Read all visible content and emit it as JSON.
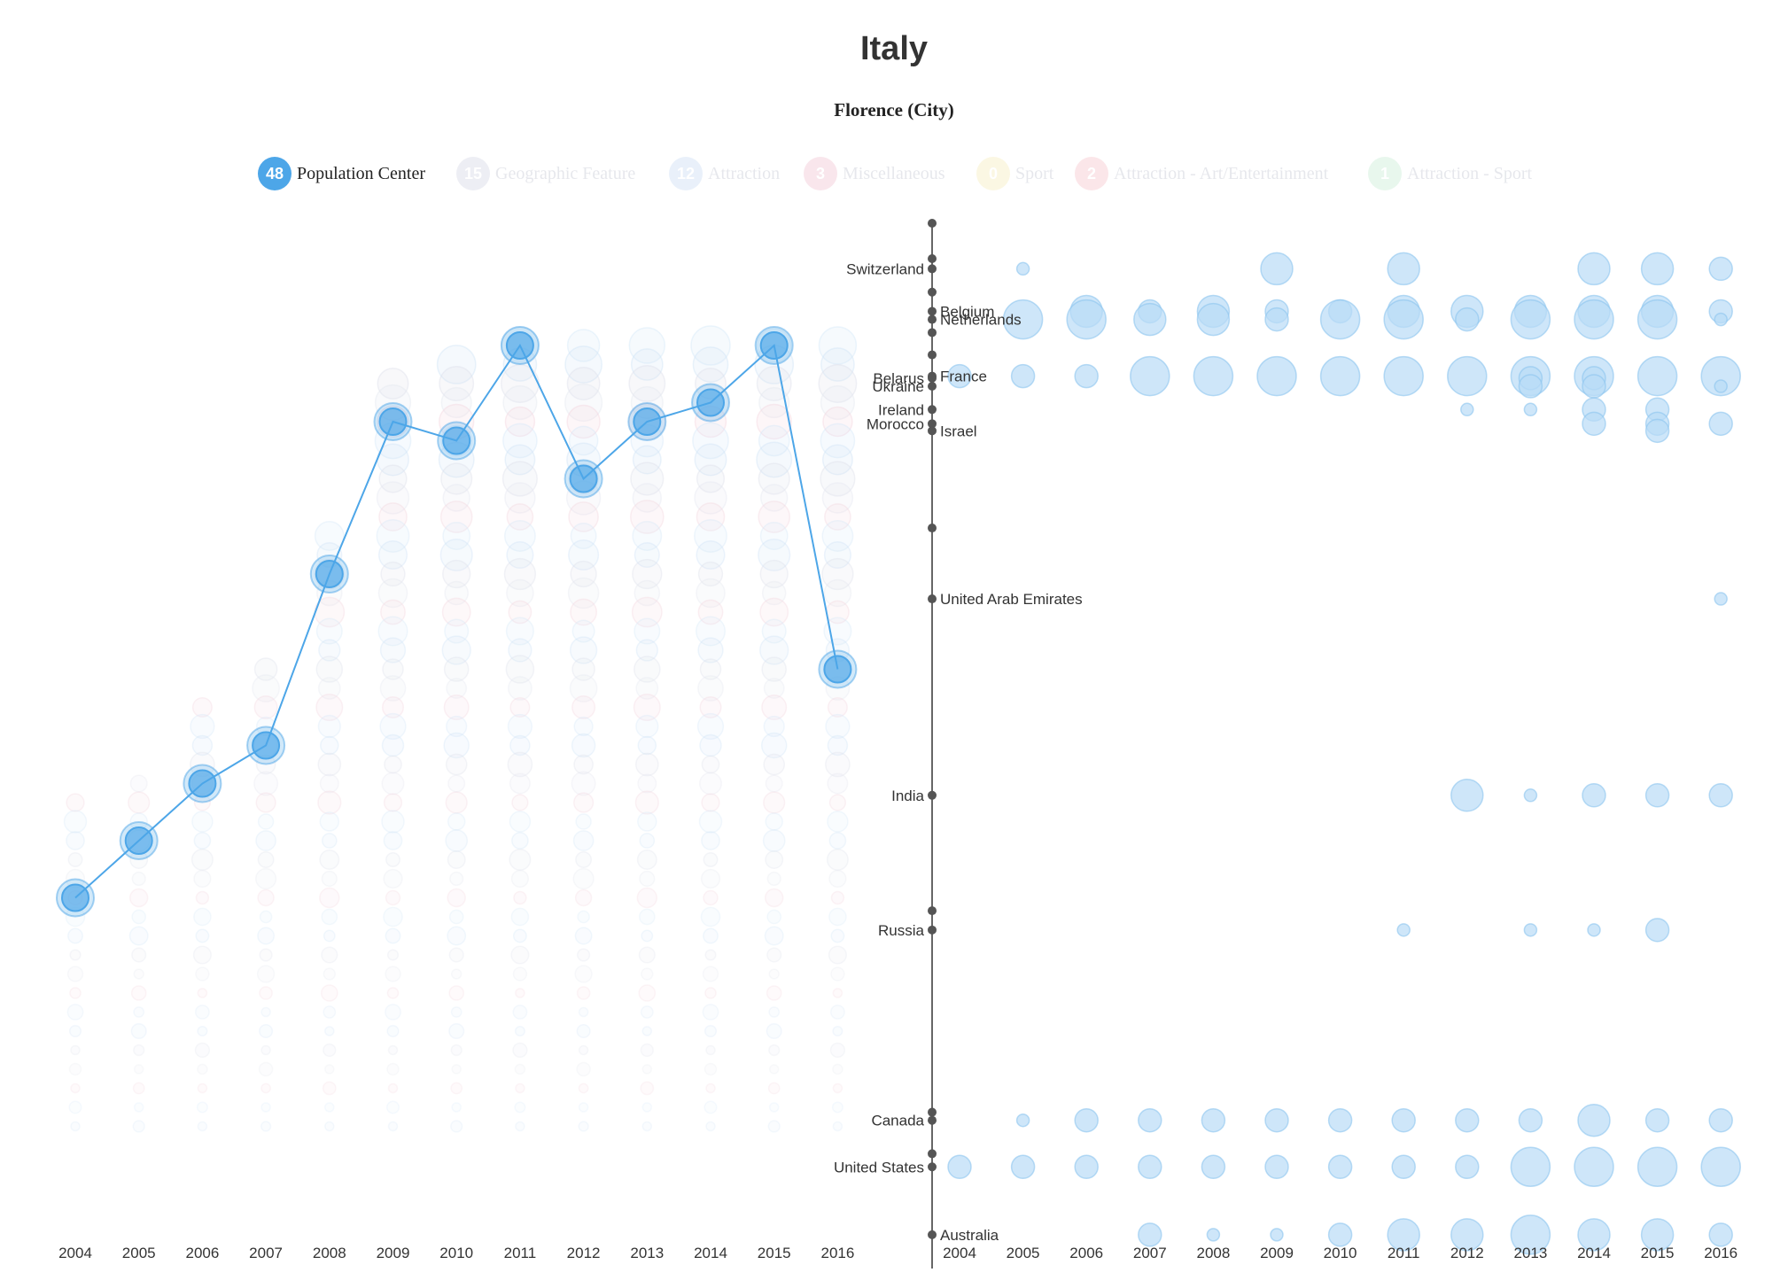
{
  "page": {
    "title": "Italy",
    "subtitle": "Florence (City)"
  },
  "legend": [
    {
      "count": "48",
      "label": "Population Center",
      "color": "#4da6e8",
      "active": true
    },
    {
      "count": "15",
      "label": "Geographic Feature",
      "color": "#d9dbe8",
      "active": false
    },
    {
      "count": "12",
      "label": "Attraction",
      "color": "#cfe0f5",
      "active": false
    },
    {
      "count": "3",
      "label": "Miscellaneous",
      "color": "#f2c9d6",
      "active": false
    },
    {
      "count": "0",
      "label": "Sport",
      "color": "#f7efc2",
      "active": false
    },
    {
      "count": "2",
      "label": "Attraction - Art/Entertainment",
      "color": "#f7c9cf",
      "active": false
    },
    {
      "count": "1",
      "label": "Attraction - Sport",
      "color": "#cdeed8",
      "active": false
    }
  ],
  "chart_data": [
    {
      "type": "line",
      "years": [
        "2004",
        "2005",
        "2006",
        "2007",
        "2008",
        "2009",
        "2010",
        "2011",
        "2012",
        "2013",
        "2014",
        "2015",
        "2016"
      ],
      "series": [
        {
          "name": "Population Center",
          "rank": [
            29,
            26,
            23,
            21,
            12,
            4,
            5,
            0,
            7,
            4,
            3,
            0,
            17
          ]
        }
      ],
      "accent": "#4da6e8"
    },
    {
      "type": "scatter",
      "years": [
        "2004",
        "2005",
        "2006",
        "2007",
        "2008",
        "2009",
        "2010",
        "2011",
        "2012",
        "2013",
        "2014",
        "2015",
        "2016"
      ],
      "countries": [
        {
          "name": "Switzerland",
          "pos": 0.045,
          "label_side": "left",
          "bubbles": [
            0,
            1,
            0,
            0,
            0,
            3,
            0,
            3,
            0,
            0,
            3,
            3,
            2
          ]
        },
        {
          "name": "Belgium",
          "pos": 0.087,
          "label_side": "right",
          "bubbles": [
            0,
            0,
            3,
            2,
            3,
            2,
            2,
            3,
            3,
            3,
            3,
            3,
            2
          ]
        },
        {
          "name": "Netherlands",
          "pos": 0.095,
          "label_side": "right",
          "bubbles": [
            0,
            4,
            4,
            3,
            3,
            2,
            4,
            4,
            2,
            4,
            4,
            4,
            1
          ]
        },
        {
          "name": "France",
          "pos": 0.151,
          "label_side": "right",
          "bubbles": [
            2,
            2,
            2,
            4,
            4,
            4,
            4,
            4,
            4,
            4,
            4,
            4,
            4
          ]
        },
        {
          "name": "Belarus",
          "pos": 0.153,
          "label_side": "left",
          "bubbles": [
            0,
            0,
            0,
            0,
            0,
            0,
            0,
            0,
            0,
            2,
            2,
            0,
            0
          ]
        },
        {
          "name": "Ukraine",
          "pos": 0.161,
          "label_side": "left",
          "bubbles": [
            0,
            0,
            0,
            0,
            0,
            0,
            0,
            0,
            0,
            2,
            2,
            0,
            1
          ]
        },
        {
          "name": "Ireland",
          "pos": 0.184,
          "label_side": "left",
          "bubbles": [
            0,
            0,
            0,
            0,
            0,
            0,
            0,
            0,
            1,
            1,
            2,
            2,
            0
          ]
        },
        {
          "name": "Morocco",
          "pos": 0.198,
          "label_side": "left",
          "bubbles": [
            0,
            0,
            0,
            0,
            0,
            0,
            0,
            0,
            0,
            0,
            2,
            2,
            2
          ]
        },
        {
          "name": "Israel",
          "pos": 0.205,
          "label_side": "right",
          "bubbles": [
            0,
            0,
            0,
            0,
            0,
            0,
            0,
            0,
            0,
            0,
            0,
            2,
            0
          ]
        },
        {
          "name": "United Arab Emirates",
          "pos": 0.371,
          "label_side": "right",
          "bubbles": [
            0,
            0,
            0,
            0,
            0,
            0,
            0,
            0,
            0,
            0,
            0,
            0,
            1
          ]
        },
        {
          "name": "India",
          "pos": 0.565,
          "label_side": "left",
          "bubbles": [
            0,
            0,
            0,
            0,
            0,
            0,
            0,
            0,
            3,
            1,
            2,
            2,
            2
          ]
        },
        {
          "name": "Russia",
          "pos": 0.698,
          "label_side": "left",
          "bubbles": [
            0,
            0,
            0,
            0,
            0,
            0,
            0,
            1,
            0,
            1,
            1,
            2,
            0
          ]
        },
        {
          "name": "Canada",
          "pos": 0.886,
          "label_side": "left",
          "bubbles": [
            0,
            1,
            2,
            2,
            2,
            2,
            2,
            2,
            2,
            2,
            3,
            2,
            2
          ]
        },
        {
          "name": "United States",
          "pos": 0.932,
          "label_side": "left",
          "bubbles": [
            2,
            2,
            2,
            2,
            2,
            2,
            2,
            2,
            2,
            4,
            4,
            4,
            4
          ]
        },
        {
          "name": "Australia",
          "pos": 0.999,
          "label_side": "right",
          "bubbles": [
            0,
            0,
            0,
            2,
            1,
            1,
            2,
            3,
            3,
            4,
            3,
            3,
            2
          ]
        }
      ],
      "extra_ticks": [
        0.0,
        0.035,
        0.068,
        0.108,
        0.13,
        0.301,
        0.679,
        0.878,
        0.919
      ],
      "bubble_color": "#b9dcf6"
    }
  ]
}
